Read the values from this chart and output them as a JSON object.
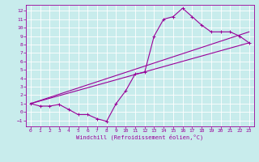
{
  "xlabel": "Windchill (Refroidissement éolien,°C)",
  "bg_color": "#c8ecec",
  "grid_color": "#b8dede",
  "line_color": "#990099",
  "xlim": [
    -0.5,
    23.5
  ],
  "ylim": [
    -1.7,
    12.7
  ],
  "xticks": [
    0,
    1,
    2,
    3,
    4,
    5,
    6,
    7,
    8,
    9,
    10,
    11,
    12,
    13,
    14,
    15,
    16,
    17,
    18,
    19,
    20,
    21,
    22,
    23
  ],
  "yticks": [
    -1,
    0,
    1,
    2,
    3,
    4,
    5,
    6,
    7,
    8,
    9,
    10,
    11,
    12
  ],
  "line1_x": [
    0,
    1,
    2,
    3,
    4,
    5,
    6,
    7,
    8,
    9,
    10,
    11,
    12,
    13,
    14,
    15,
    16,
    17,
    18,
    19,
    20,
    21,
    22,
    23
  ],
  "line1_y": [
    1.0,
    0.7,
    0.7,
    0.9,
    0.3,
    -0.3,
    -0.3,
    -0.8,
    -1.1,
    1.0,
    2.5,
    4.5,
    4.7,
    9.0,
    11.0,
    11.3,
    12.3,
    11.3,
    10.3,
    9.5,
    9.5,
    9.5,
    9.0,
    8.2
  ],
  "line2_x": [
    0,
    23
  ],
  "line2_y": [
    1.0,
    9.5
  ],
  "line3_x": [
    0,
    23
  ],
  "line3_y": [
    1.0,
    8.2
  ]
}
